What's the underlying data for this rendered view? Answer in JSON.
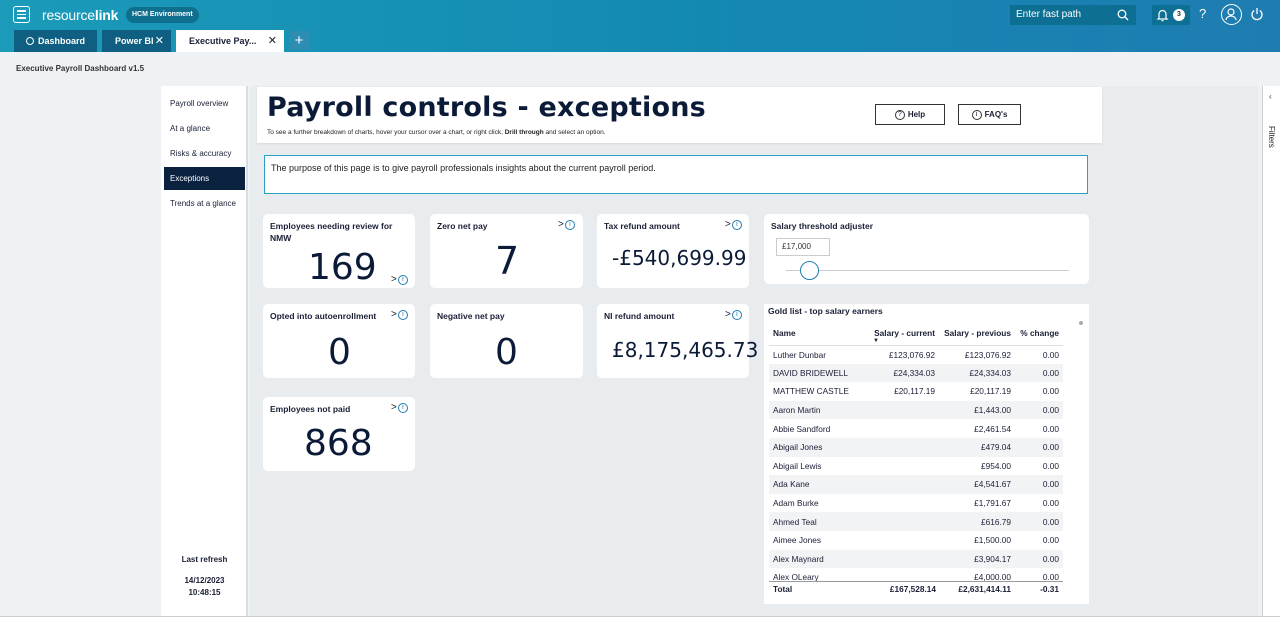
{
  "app": {
    "logo_prefix": "resource",
    "logo_suffix": "link",
    "environment": "HCM Environment",
    "fast_path_placeholder": "Enter fast path",
    "notifications_count": "3",
    "help_glyph": "?"
  },
  "tabs": [
    {
      "label": "Dashboard",
      "icon": "home-icon"
    },
    {
      "label": "Power BI",
      "close": "✕"
    },
    {
      "label": "Executive Pay...",
      "close": "✕"
    }
  ],
  "tab_add": "+",
  "report_title": "Executive Payroll Dashboard v1.5",
  "nav": {
    "items": [
      "Payroll overview",
      "At a glance",
      "Risks & accuracy",
      "Exceptions",
      "Trends at a glance"
    ],
    "active": "Exceptions",
    "last_refresh_label": "Last refresh",
    "last_refresh_date": "14/12/2023",
    "last_refresh_time": "10:48:15"
  },
  "header": {
    "title": "Payroll controls - exceptions",
    "subtitle_start": "To see a further breakdown of charts, hover your cursor over a chart, or right click, ",
    "subtitle_bold": "Drill through",
    "subtitle_end": " and select an option.",
    "help_label": "Help",
    "faq_label": "FAQ's"
  },
  "purpose_text": "The purpose of this page is to give payroll professionals insights about the current payroll period.",
  "kpis": {
    "nmw": {
      "title": "Employees needing review for NMW",
      "value": "169"
    },
    "zero_net": {
      "title": "Zero net pay",
      "value": "7"
    },
    "tax_refund": {
      "title": "Tax refund amount",
      "value": "-£540,699.99"
    },
    "autoenrol": {
      "title": "Opted into autoenrollment",
      "value": "0"
    },
    "negative_net": {
      "title": "Negative net pay",
      "value": "0"
    },
    "ni_refund": {
      "title": "NI refund amount",
      "value": "£8,175,465.73"
    },
    "not_paid": {
      "title": "Employees not paid",
      "value": "868"
    }
  },
  "drill_glyph": ">",
  "info_glyph": "i",
  "slider": {
    "title": "Salary threshold adjuster",
    "value": "£17,000"
  },
  "gold_list": {
    "title": "Gold list - top salary earners",
    "columns": [
      "Name",
      "Salary - current",
      "Salary - previous",
      "% change"
    ],
    "rows": [
      [
        "Luther Dunbar",
        "£123,076.92",
        "£123,076.92",
        "0.00"
      ],
      [
        "DAVID BRIDEWELL",
        "£24,334.03",
        "£24,334.03",
        "0.00"
      ],
      [
        "MATTHEW CASTLE",
        "£20,117.19",
        "£20,117.19",
        "0.00"
      ],
      [
        "Aaron Martin",
        "",
        "£1,443.00",
        "0.00"
      ],
      [
        "Abbie Sandford",
        "",
        "£2,461.54",
        "0.00"
      ],
      [
        "Abigail Jones",
        "",
        "£479.04",
        "0.00"
      ],
      [
        "Abigail Lewis",
        "",
        "£954.00",
        "0.00"
      ],
      [
        "Ada Kane",
        "",
        "£4,541.67",
        "0.00"
      ],
      [
        "Adam Burke",
        "",
        "£1,791.67",
        "0.00"
      ],
      [
        "Ahmed Teal",
        "",
        "£616.79",
        "0.00"
      ],
      [
        "Aimee Jones",
        "",
        "£1,500.00",
        "0.00"
      ],
      [
        "Alex Maynard",
        "",
        "£3,904.17",
        "0.00"
      ],
      [
        "Alex OLeary",
        "",
        "£4,000.00",
        "0.00"
      ]
    ],
    "total": {
      "label": "Total",
      "current": "£167,528.14",
      "previous": "£2,631,414.11",
      "change": "-0.31"
    }
  },
  "filters_label": "Filters",
  "filters_chevron": "‹",
  "colors": {
    "brand": "#1389b2",
    "nav_active": "#0b2140",
    "accent": "#1f7cb1"
  }
}
